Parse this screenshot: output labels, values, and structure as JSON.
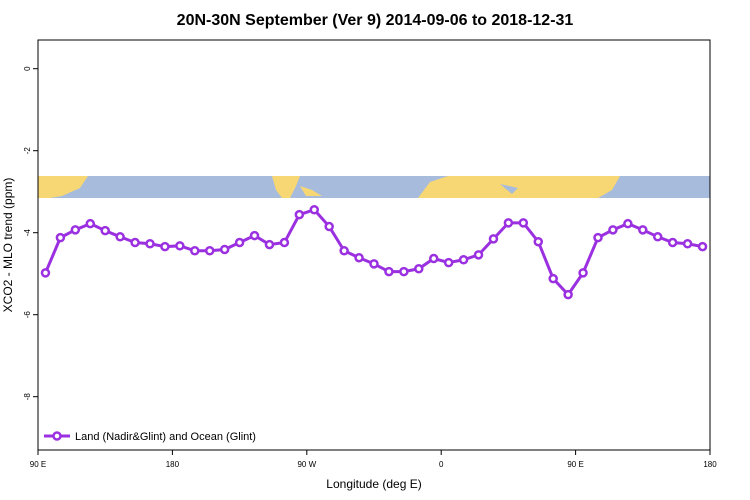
{
  "chart_data": {
    "type": "line",
    "title": "20N-30N September (Ver 9)   2014-09-06 to 2018-12-31",
    "xlabel": "Longitude (deg E)",
    "ylabel": "XCO2 - MLO trend (ppm)",
    "x": [
      95,
      105,
      115,
      125,
      135,
      145,
      155,
      165,
      175,
      185,
      195,
      205,
      215,
      225,
      235,
      245,
      255,
      265,
      275,
      285,
      295,
      305,
      315,
      325,
      335,
      345,
      355,
      365,
      375,
      385,
      395,
      405,
      415,
      425,
      435,
      445,
      455,
      465,
      475,
      485,
      495,
      505,
      515,
      525,
      535
    ],
    "series": [
      {
        "name": "Land (Nadir&Glint) and Ocean (Glint)",
        "color": "#9b30e0",
        "values": [
          -4.98,
          -4.12,
          -3.93,
          -3.78,
          -3.95,
          -4.1,
          -4.24,
          -4.27,
          -4.34,
          -4.32,
          -4.44,
          -4.44,
          -4.41,
          -4.24,
          -4.07,
          -4.29,
          -4.24,
          -3.56,
          -3.44,
          -3.85,
          -4.44,
          -4.61,
          -4.76,
          -4.95,
          -4.95,
          -4.88,
          -4.63,
          -4.73,
          -4.66,
          -4.54,
          -4.15,
          -3.76,
          -3.76,
          -4.22,
          -5.12,
          -5.51,
          -4.98,
          -4.12,
          -3.93,
          -3.78,
          -3.93,
          -4.1,
          -4.24,
          -4.27,
          -4.34
        ]
      }
    ],
    "xlim": [
      90,
      540
    ],
    "xticks": [
      {
        "value": 90,
        "label": "90 E"
      },
      180,
      {
        "value": 270,
        "label": "90 W"
      },
      {
        "value": 360,
        "label": "0"
      },
      {
        "value": 450,
        "label": "90 E"
      },
      {
        "value": 540,
        "label": "180"
      }
    ],
    "ylim": [
      -9.3,
      0.7
    ],
    "yticks": [
      0,
      -2,
      -4,
      -6,
      -8
    ],
    "legend": "bottom-left"
  }
}
